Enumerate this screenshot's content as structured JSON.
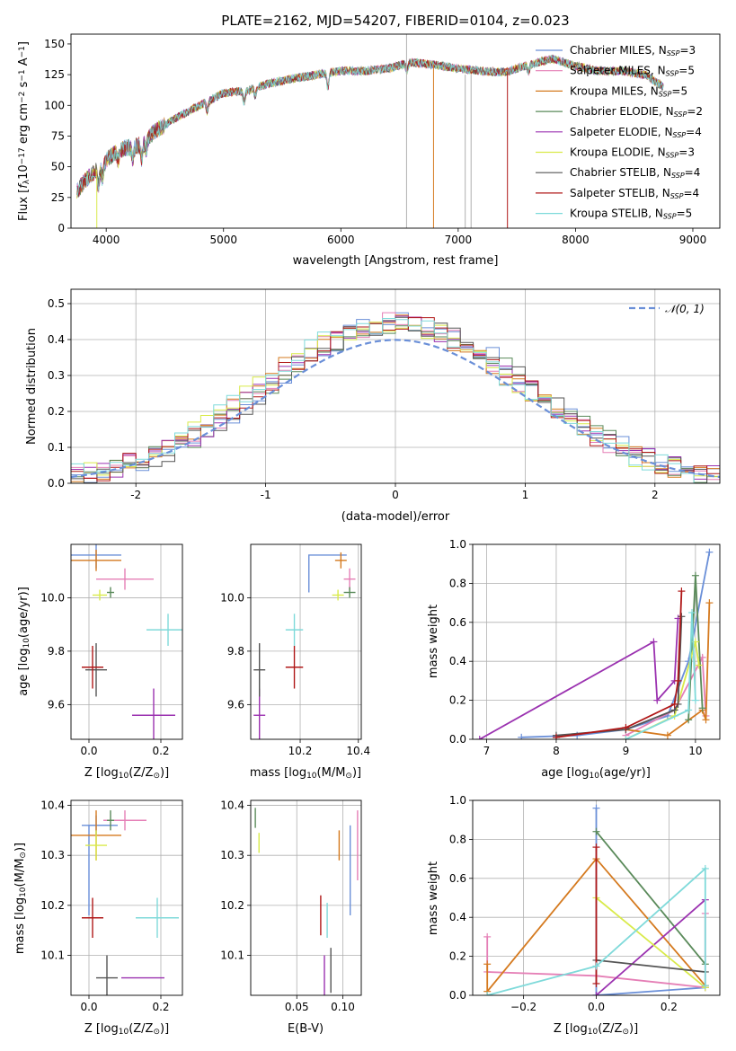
{
  "colors": {
    "Chabrier MILES": "#6a8fd8",
    "Salpeter MILES": "#e57fb6",
    "Kroupa MILES": "#d57a1f",
    "Chabrier ELODIE": "#5a8a5a",
    "Salpeter ELODIE": "#9b32b0",
    "Kroupa ELODIE": "#d9ea4a",
    "Chabrier STELIB": "#555555",
    "Salpeter STELIB": "#b01818",
    "Kroupa STELIB": "#7fdada"
  },
  "chart_data": [
    {
      "id": "spectrum",
      "type": "line",
      "title": "PLATE=2162, MJD=54207, FIBERID=0104, z=0.023",
      "xlabel": "wavelength [Angstrom, rest frame]",
      "ylabel_parts": [
        "Flux [",
        "f",
        "λ",
        "10",
        "−17",
        " erg cm",
        "−2",
        " s",
        "−1",
        " A",
        "−1",
        "]"
      ],
      "xlim": [
        3700,
        9230
      ],
      "ylim": [
        0,
        158
      ],
      "xticks": [
        4000,
        5000,
        6000,
        7000,
        8000,
        9000
      ],
      "yticks": [
        0,
        25,
        50,
        75,
        100,
        125,
        150
      ],
      "anchors": [
        [
          3750,
          30
        ],
        [
          3850,
          42
        ],
        [
          3950,
          50
        ],
        [
          4050,
          60
        ],
        [
          4150,
          65
        ],
        [
          4300,
          68
        ],
        [
          4400,
          78
        ],
        [
          4600,
          90
        ],
        [
          4800,
          100
        ],
        [
          5000,
          110
        ],
        [
          5200,
          112
        ],
        [
          5400,
          118
        ],
        [
          5600,
          122
        ],
        [
          5800,
          125
        ],
        [
          6000,
          128
        ],
        [
          6200,
          128
        ],
        [
          6400,
          130
        ],
        [
          6600,
          135
        ],
        [
          6800,
          133
        ],
        [
          7000,
          130
        ],
        [
          7200,
          128
        ],
        [
          7400,
          127
        ],
        [
          7600,
          133
        ],
        [
          7800,
          138
        ],
        [
          8000,
          132
        ],
        [
          8200,
          128
        ],
        [
          8400,
          128
        ],
        [
          8600,
          125
        ],
        [
          8700,
          118
        ],
        [
          8750,
          115
        ]
      ],
      "legend": [
        {
          "name": "Chabrier MILES",
          "n": "3"
        },
        {
          "name": "Salpeter MILES",
          "n": "5"
        },
        {
          "name": "Kroupa MILES",
          "n": "5"
        },
        {
          "name": "Chabrier ELODIE",
          "n": "2"
        },
        {
          "name": "Salpeter ELODIE",
          "n": "4"
        },
        {
          "name": "Kroupa ELODIE",
          "n": "3"
        },
        {
          "name": "Chabrier STELIB",
          "n": "4"
        },
        {
          "name": "Salpeter STELIB",
          "n": "4"
        },
        {
          "name": "Kroupa STELIB",
          "n": "5"
        }
      ],
      "legend_n_prefix": "N",
      "legend_n_sub": "SSP",
      "grid": false,
      "legend_position": "right"
    },
    {
      "id": "residuals",
      "type": "histogram",
      "xlabel": "(data-model)/error",
      "ylabel": "Normed distribution",
      "xlim": [
        -2.5,
        2.5
      ],
      "ylim": [
        0,
        0.54
      ],
      "xticks": [
        -2,
        -1,
        0,
        1,
        2
      ],
      "yticks": [
        0.0,
        0.1,
        0.2,
        0.3,
        0.4,
        0.5
      ],
      "bin_width": 0.1,
      "curve_label": "𝒩(0, 1)",
      "grid": true,
      "legend_position": "top-right"
    },
    {
      "id": "age_vs_Z",
      "type": "errorbar",
      "xlabel_parts": [
        "Z [log",
        "10",
        "(Z/Z",
        "⊙",
        ")]"
      ],
      "ylabel_parts": [
        "age  [log",
        "10",
        "(age/yr)]"
      ],
      "xlim": [
        -0.05,
        0.26
      ],
      "ylim": [
        9.47,
        10.2
      ],
      "xticks": [
        0.0,
        0.2
      ],
      "yticks": [
        9.6,
        9.8,
        10.0
      ],
      "points": [
        {
          "model": "Chabrier MILES",
          "x": 0.02,
          "y": 10.16,
          "xerr": 0.07,
          "yerr": 0.05
        },
        {
          "model": "Salpeter MILES",
          "x": 0.1,
          "y": 10.07,
          "xerr": 0.08,
          "yerr": 0.04
        },
        {
          "model": "Kroupa MILES",
          "x": 0.02,
          "y": 10.14,
          "xerr": 0.07,
          "yerr": 0.04
        },
        {
          "model": "Chabrier ELODIE",
          "x": 0.06,
          "y": 10.02,
          "xerr": 0.01,
          "yerr": 0.02
        },
        {
          "model": "Salpeter ELODIE",
          "x": 0.18,
          "y": 9.56,
          "xerr": 0.06,
          "yerr": 0.1
        },
        {
          "model": "Kroupa ELODIE",
          "x": 0.03,
          "y": 10.01,
          "xerr": 0.02,
          "yerr": 0.02
        },
        {
          "model": "Chabrier STELIB",
          "x": 0.02,
          "y": 9.73,
          "xerr": 0.03,
          "yerr": 0.1
        },
        {
          "model": "Salpeter STELIB",
          "x": 0.01,
          "y": 9.74,
          "xerr": 0.03,
          "yerr": 0.08
        },
        {
          "model": "Kroupa STELIB",
          "x": 0.22,
          "y": 9.88,
          "xerr": 0.06,
          "yerr": 0.06
        }
      ],
      "grid": true
    },
    {
      "id": "age_vs_mass",
      "type": "errorbar",
      "xlabel_parts": [
        "mass [log",
        "10",
        "(M/M",
        "⊙",
        ")]"
      ],
      "xlim": [
        10.03,
        10.41
      ],
      "ylim": [
        9.47,
        10.2
      ],
      "xticks": [
        10.2,
        10.4
      ],
      "yticks": [
        9.6,
        9.8,
        10.0
      ],
      "points": [
        {
          "model": "Chabrier MILES",
          "x": 10.36,
          "y": 10.16,
          "xerr": 0.0,
          "yerr": 0.0,
          "box": [
            10.23,
            10.36,
            10.16,
            10.02
          ]
        },
        {
          "model": "Salpeter MILES",
          "x": 10.37,
          "y": 10.07,
          "xerr": 0.02,
          "yerr": 0.04
        },
        {
          "model": "Kroupa MILES",
          "x": 10.34,
          "y": 10.14,
          "xerr": 0.02,
          "yerr": 0.03
        },
        {
          "model": "Chabrier ELODIE",
          "x": 10.37,
          "y": 10.02,
          "xerr": 0.02,
          "yerr": 0.02
        },
        {
          "model": "Salpeter ELODIE",
          "x": 10.06,
          "y": 9.56,
          "xerr": 0.02,
          "yerr": 0.1
        },
        {
          "model": "Kroupa ELODIE",
          "x": 10.33,
          "y": 10.01,
          "xerr": 0.02,
          "yerr": 0.02
        },
        {
          "model": "Chabrier STELIB",
          "x": 10.06,
          "y": 9.73,
          "xerr": 0.02,
          "yerr": 0.1
        },
        {
          "model": "Salpeter STELIB",
          "x": 10.18,
          "y": 9.74,
          "xerr": 0.03,
          "yerr": 0.08
        },
        {
          "model": "Kroupa STELIB",
          "x": 10.18,
          "y": 9.88,
          "xerr": 0.03,
          "yerr": 0.06
        }
      ],
      "grid": true
    },
    {
      "id": "massweight_vs_age",
      "type": "line",
      "xlabel_parts": [
        "age  [log",
        "10",
        "(age/yr)]"
      ],
      "ylabel": "mass weight",
      "xlim": [
        6.8,
        10.35
      ],
      "ylim": [
        0,
        1
      ],
      "xticks": [
        7,
        8,
        9,
        10
      ],
      "yticks": [
        0.0,
        0.2,
        0.4,
        0.6,
        0.8,
        1.0
      ],
      "series": [
        {
          "model": "Chabrier MILES",
          "x": [
            7.5,
            8.3,
            9.0,
            9.6,
            9.9,
            10.2
          ],
          "y": [
            0.01,
            0.02,
            0.05,
            0.12,
            0.4,
            0.96
          ]
        },
        {
          "model": "Salpeter MILES",
          "x": [
            9.0,
            9.7,
            10.1,
            10.15
          ],
          "y": [
            0.02,
            0.15,
            0.42,
            0.12
          ]
        },
        {
          "model": "Kroupa MILES",
          "x": [
            9.0,
            9.6,
            10.1,
            10.15,
            10.2
          ],
          "y": [
            0.05,
            0.02,
            0.15,
            0.1,
            0.7
          ]
        },
        {
          "model": "Chabrier ELODIE",
          "x": [
            9.9,
            10.0,
            10.1
          ],
          "y": [
            0.1,
            0.84,
            0.16
          ]
        },
        {
          "model": "Salpeter ELODIE",
          "x": [
            6.9,
            9.4,
            9.45,
            9.7,
            9.75
          ],
          "y": [
            0.0,
            0.5,
            0.2,
            0.3,
            0.62
          ]
        },
        {
          "model": "Kroupa ELODIE",
          "x": [
            9.0,
            9.7,
            10.0,
            10.05
          ],
          "y": [
            0.0,
            0.12,
            0.5,
            0.38
          ]
        },
        {
          "model": "Chabrier STELIB",
          "x": [
            8.0,
            9.0,
            9.7,
            9.75,
            9.8
          ],
          "y": [
            0.02,
            0.05,
            0.15,
            0.18,
            0.63
          ]
        },
        {
          "model": "Salpeter STELIB",
          "x": [
            8.0,
            9.0,
            9.7,
            9.75,
            9.8
          ],
          "y": [
            0.01,
            0.06,
            0.18,
            0.3,
            0.76
          ]
        },
        {
          "model": "Kroupa STELIB",
          "x": [
            9.0,
            9.9,
            9.95,
            10.0
          ],
          "y": [
            0.0,
            0.15,
            0.65,
            0.2
          ]
        }
      ],
      "grid": true
    },
    {
      "id": "mass_vs_Z",
      "type": "errorbar",
      "xlabel_parts": [
        "Z [log",
        "10",
        "(Z/Z",
        "⊙",
        ")]"
      ],
      "ylabel_parts": [
        "mass [log",
        "10",
        "(M/M",
        "⊙",
        ")]"
      ],
      "xlim": [
        -0.05,
        0.26
      ],
      "ylim": [
        10.02,
        10.41
      ],
      "xticks": [
        0.0,
        0.2
      ],
      "yticks": [
        10.1,
        10.2,
        10.3,
        10.4
      ],
      "points": [
        {
          "model": "Chabrier MILES",
          "x": 0.02,
          "y": 10.36,
          "xerr": 0.04,
          "yerr": 0.02,
          "box": [
            -0.0,
            0.08,
            10.36,
            10.18
          ]
        },
        {
          "model": "Salpeter MILES",
          "x": 0.1,
          "y": 10.37,
          "xerr": 0.06,
          "yerr": 0.02
        },
        {
          "model": "Kroupa MILES",
          "x": 0.02,
          "y": 10.34,
          "xerr": 0.07,
          "yerr": 0.05
        },
        {
          "model": "Chabrier ELODIE",
          "x": 0.06,
          "y": 10.37,
          "xerr": 0.01,
          "yerr": 0.02
        },
        {
          "model": "Salpeter ELODIE",
          "x": 0.15,
          "y": 10.055,
          "xerr": 0.06,
          "yerr": 0.0
        },
        {
          "model": "Kroupa ELODIE",
          "x": 0.02,
          "y": 10.32,
          "xerr": 0.03,
          "yerr": 0.03
        },
        {
          "model": "Chabrier STELIB",
          "x": 0.05,
          "y": 10.055,
          "xerr": 0.03,
          "yerr": 0.045
        },
        {
          "model": "Salpeter STELIB",
          "x": 0.01,
          "y": 10.175,
          "xerr": 0.03,
          "yerr": 0.04
        },
        {
          "model": "Kroupa STELIB",
          "x": 0.19,
          "y": 10.175,
          "xerr": 0.06,
          "yerr": 0.04
        }
      ],
      "grid": true
    },
    {
      "id": "mass_vs_EBV",
      "type": "errorbar",
      "xlabel": "E(B-V)",
      "xlim": [
        0.0,
        0.12
      ],
      "ylim": [
        10.02,
        10.41
      ],
      "xticks": [
        0.05,
        0.1
      ],
      "yticks": [
        10.1,
        10.2,
        10.3,
        10.4
      ],
      "points": [
        {
          "model": "Chabrier MILES",
          "x": 0.108,
          "y": 10.27,
          "xerr": 0,
          "yerr": 0.09
        },
        {
          "model": "Salpeter MILES",
          "x": 0.116,
          "y": 10.32,
          "xerr": 0,
          "yerr": 0.07
        },
        {
          "model": "Kroupa MILES",
          "x": 0.096,
          "y": 10.32,
          "xerr": 0,
          "yerr": 0.03
        },
        {
          "model": "Chabrier ELODIE",
          "x": 0.005,
          "y": 10.375,
          "xerr": 0,
          "yerr": 0.02
        },
        {
          "model": "Salpeter ELODIE",
          "x": 0.08,
          "y": 10.06,
          "xerr": 0,
          "yerr": 0.04
        },
        {
          "model": "Kroupa ELODIE",
          "x": 0.009,
          "y": 10.325,
          "xerr": 0,
          "yerr": 0.02
        },
        {
          "model": "Chabrier STELIB",
          "x": 0.087,
          "y": 10.07,
          "xerr": 0,
          "yerr": 0.045
        },
        {
          "model": "Salpeter STELIB",
          "x": 0.076,
          "y": 10.18,
          "xerr": 0,
          "yerr": 0.04
        },
        {
          "model": "Kroupa STELIB",
          "x": 0.083,
          "y": 10.17,
          "xerr": 0,
          "yerr": 0.035
        }
      ],
      "grid": true
    },
    {
      "id": "massweight_vs_Z",
      "type": "line",
      "xlabel_parts": [
        "Z [log",
        "10",
        "(Z/Z",
        "⊙",
        ")]"
      ],
      "ylabel": "mass weight",
      "xlim": [
        -0.34,
        0.34
      ],
      "ylim": [
        0,
        1
      ],
      "xticks": [
        -0.2,
        0.0,
        0.2
      ],
      "yticks": [
        0.0,
        0.2,
        0.4,
        0.6,
        0.8,
        1.0
      ],
      "series": [
        {
          "model": "Chabrier MILES",
          "x": [
            0.0,
            0.0,
            0.3
          ],
          "y": [
            0.96,
            0.0,
            0.04
          ]
        },
        {
          "model": "Salpeter MILES",
          "x": [
            -0.3,
            -0.3,
            0.0,
            0.3,
            0.3
          ],
          "y": [
            0.3,
            0.12,
            0.1,
            0.04,
            0.42
          ]
        },
        {
          "model": "Kroupa MILES",
          "x": [
            -0.3,
            -0.3,
            0.0,
            0.3
          ],
          "y": [
            0.16,
            0.02,
            0.7,
            0.05
          ]
        },
        {
          "model": "Chabrier ELODIE",
          "x": [
            0.0,
            0.3
          ],
          "y": [
            0.84,
            0.16
          ]
        },
        {
          "model": "Salpeter ELODIE",
          "x": [
            0.0,
            0.3
          ],
          "y": [
            0.0,
            0.49
          ]
        },
        {
          "model": "Kroupa ELODIE",
          "x": [
            0.0,
            0.3
          ],
          "y": [
            0.5,
            0.04
          ]
        },
        {
          "model": "Chabrier STELIB",
          "x": [
            0.0,
            0.3
          ],
          "y": [
            0.18,
            0.12
          ]
        },
        {
          "model": "Salpeter STELIB",
          "x": [
            0.0,
            0.0
          ],
          "y": [
            0.76,
            0.06
          ]
        },
        {
          "model": "Kroupa STELIB",
          "x": [
            -0.3,
            0.0,
            0.3,
            0.3
          ],
          "y": [
            0.0,
            0.15,
            0.65,
            0.05
          ]
        }
      ],
      "grid": true
    }
  ]
}
